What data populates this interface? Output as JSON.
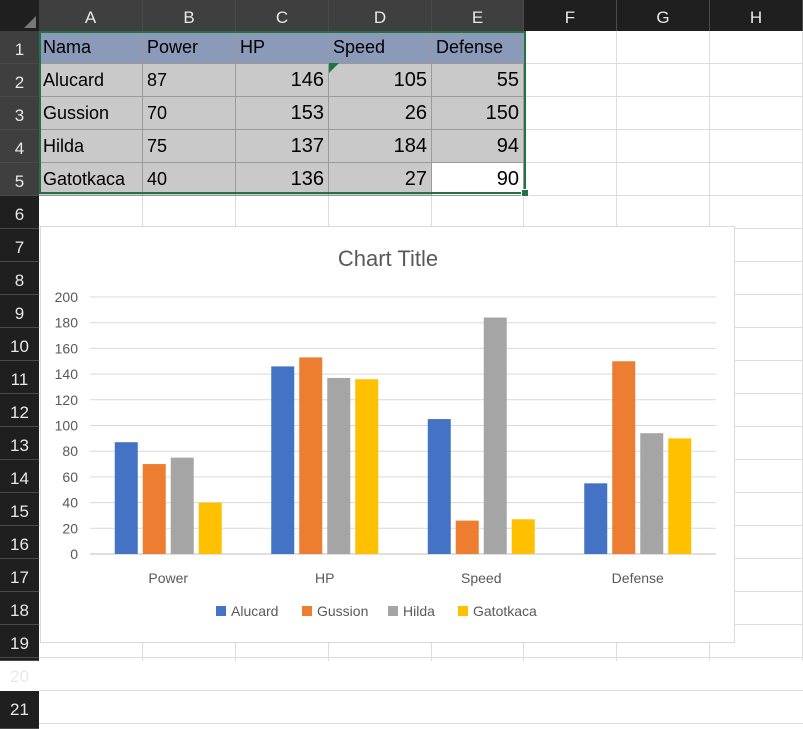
{
  "columns": [
    "A",
    "B",
    "C",
    "D",
    "E",
    "F",
    "G",
    "H"
  ],
  "rows": [
    "1",
    "2",
    "3",
    "4",
    "5",
    "6",
    "7",
    "8",
    "9",
    "10",
    "11",
    "12",
    "13",
    "14",
    "15",
    "16",
    "17",
    "18",
    "19",
    "20",
    "21"
  ],
  "table": {
    "header": [
      "Nama",
      "Power",
      "HP",
      "Speed",
      "Defense"
    ],
    "rows": [
      [
        "Alucard",
        "87",
        "146",
        "105",
        "55"
      ],
      [
        "Gussion",
        "70",
        "153",
        "26",
        "150"
      ],
      [
        "Hilda",
        "75",
        "137",
        "184",
        "94"
      ],
      [
        "Gatotkaca",
        "40",
        "136",
        "27",
        "90"
      ]
    ]
  },
  "colors": {
    "header_fill": "#8a9ab8",
    "cell_fill": "#c9c9c9",
    "selection": "#217346",
    "series": [
      "#4472c4",
      "#ed7d31",
      "#a5a5a5",
      "#ffc000"
    ]
  },
  "chart_data": {
    "type": "bar",
    "title": "Chart Title",
    "categories": [
      "Power",
      "HP",
      "Speed",
      "Defense"
    ],
    "series": [
      {
        "name": "Alucard",
        "values": [
          87,
          146,
          105,
          55
        ]
      },
      {
        "name": "Gussion",
        "values": [
          70,
          153,
          26,
          150
        ]
      },
      {
        "name": "Hilda",
        "values": [
          75,
          137,
          184,
          94
        ]
      },
      {
        "name": "Gatotkaca",
        "values": [
          40,
          136,
          27,
          90
        ]
      }
    ],
    "ylim": [
      0,
      200
    ],
    "yticks": [
      0,
      20,
      40,
      60,
      80,
      100,
      120,
      140,
      160,
      180,
      200
    ],
    "grid": true,
    "legend": "bottom"
  }
}
